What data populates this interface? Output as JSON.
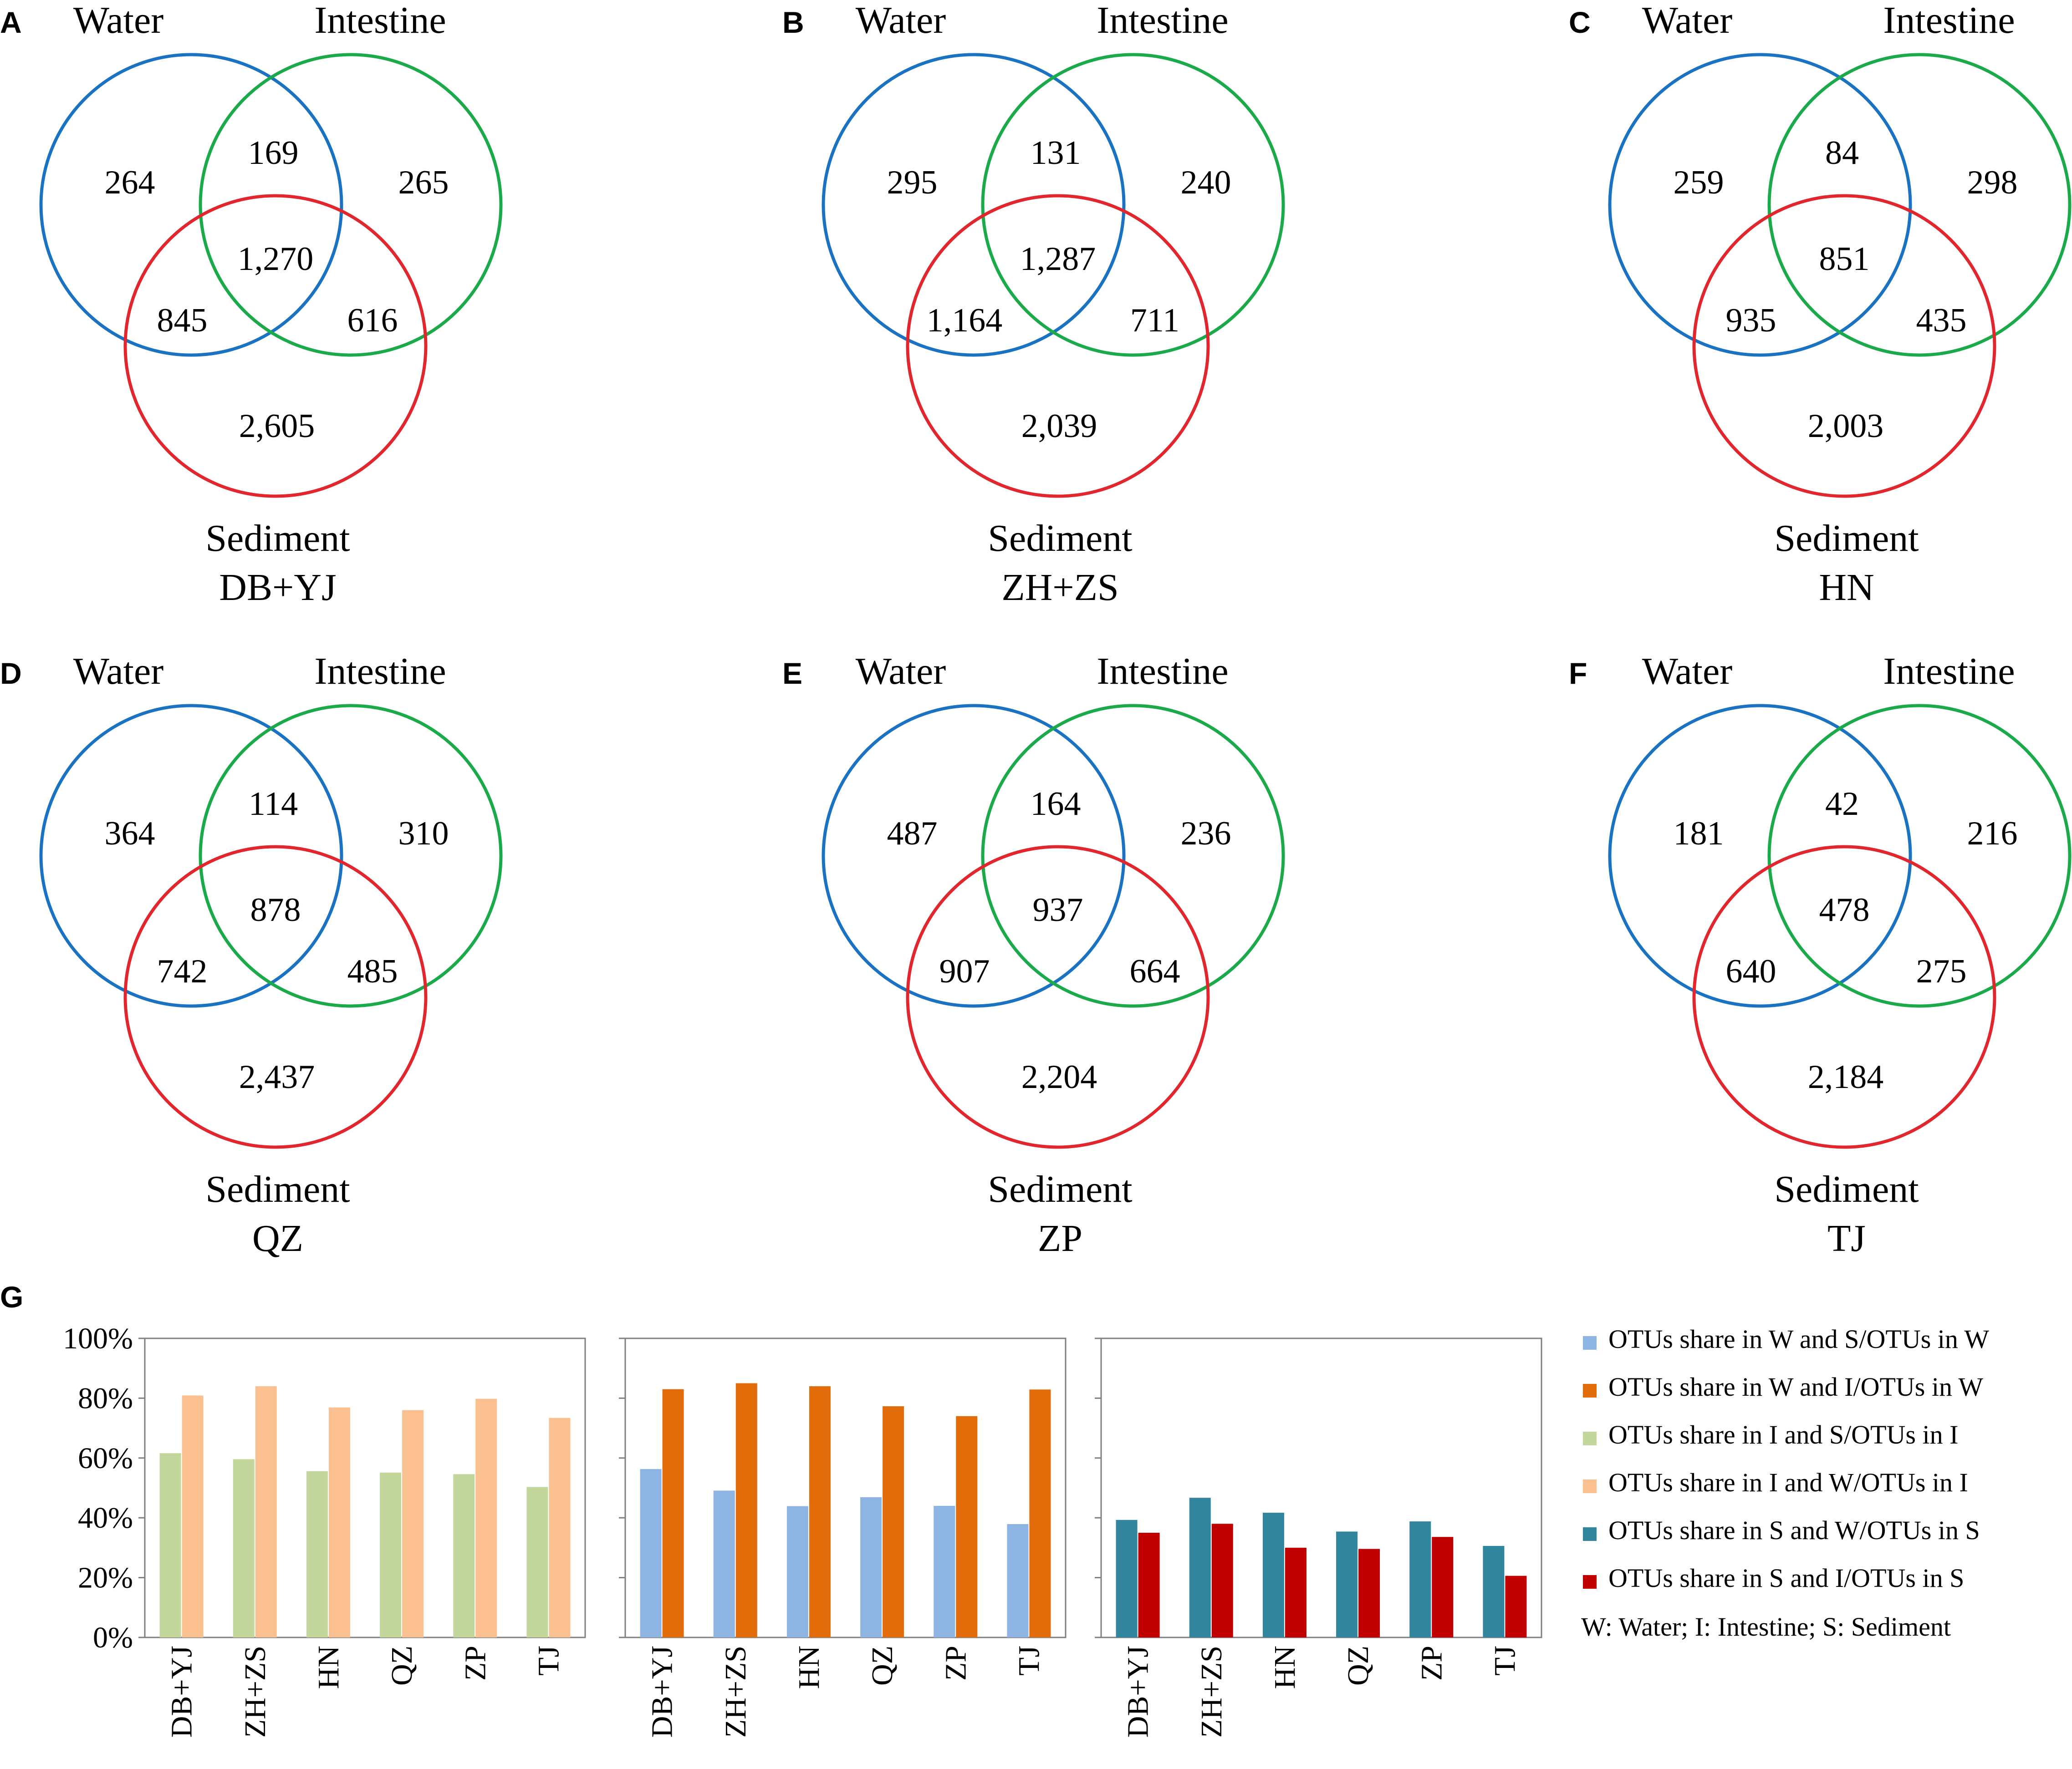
{
  "colors": {
    "water": "#1a72c2",
    "intestine": "#1aaa4a",
    "sediment": "#e2262d",
    "ws_w": "#8eb4e3",
    "wi_w": "#e36c0a",
    "is_i": "#c3d69b",
    "iw_i": "#fac090",
    "sw_s": "#31859c",
    "si_s": "#c00000"
  },
  "venn_labels": {
    "water": "Water",
    "intestine": "Intestine",
    "sediment": "Sediment"
  },
  "venns": [
    {
      "letter": "A",
      "site": "DB+YJ",
      "w": "264",
      "i": "265",
      "s": "2,605",
      "wi": "169",
      "ws": "845",
      "is": "616",
      "wis": "1,270"
    },
    {
      "letter": "B",
      "site": "ZH+ZS",
      "w": "295",
      "i": "240",
      "s": "2,039",
      "wi": "131",
      "ws": "1,164",
      "is": "711",
      "wis": "1,287"
    },
    {
      "letter": "C",
      "site": "HN",
      "w": "259",
      "i": "298",
      "s": "2,003",
      "wi": "84",
      "ws": "935",
      "is": "435",
      "wis": "851"
    },
    {
      "letter": "D",
      "site": "QZ",
      "w": "364",
      "i": "310",
      "s": "2,437",
      "wi": "114",
      "ws": "742",
      "is": "485",
      "wis": "878"
    },
    {
      "letter": "E",
      "site": "ZP",
      "w": "487",
      "i": "236",
      "s": "2,204",
      "wi": "164",
      "ws": "907",
      "is": "664",
      "wis": "937"
    },
    {
      "letter": "F",
      "site": "TJ",
      "w": "181",
      "i": "216",
      "s": "2,184",
      "wi": "42",
      "ws": "640",
      "is": "275",
      "wis": "478"
    }
  ],
  "chart_data": [
    {
      "type": "bar",
      "panel": "G",
      "categories": [
        "DB+YJ",
        "ZH+ZS",
        "HN",
        "QZ",
        "ZP",
        "TJ"
      ],
      "y_ticks": [
        "0%",
        "20%",
        "40%",
        "60%",
        "80%",
        "100%"
      ],
      "ylim": [
        0,
        100
      ],
      "series": [
        {
          "name": "OTUs share in I and S/OTUs in I",
          "key": "is_i",
          "values": [
            61.6,
            59.6,
            55.6,
            55.1,
            54.6,
            50.3
          ]
        },
        {
          "name": "OTUs share in I and W/OTUs in I",
          "key": "iw_i",
          "values": [
            80.9,
            84.0,
            76.9,
            76.0,
            79.8,
            73.4
          ]
        }
      ]
    },
    {
      "type": "bar",
      "panel": "G",
      "categories": [
        "DB+YJ",
        "ZH+ZS",
        "HN",
        "QZ",
        "ZP",
        "TJ"
      ],
      "y_ticks": [
        "0%",
        "20%",
        "40%",
        "60%",
        "80%",
        "100%"
      ],
      "ylim": [
        0,
        100
      ],
      "series": [
        {
          "name": "OTUs share in W and S/OTUs in W",
          "key": "ws_w",
          "values": [
            56.3,
            49.1,
            43.9,
            46.9,
            44.0,
            37.9
          ]
        },
        {
          "name": "OTUs share in W and I/OTUs in W",
          "key": "wi_w",
          "values": [
            83.0,
            85.0,
            84.0,
            77.3,
            74.0,
            82.9
          ]
        }
      ]
    },
    {
      "type": "bar",
      "panel": "G",
      "categories": [
        "DB+YJ",
        "ZH+ZS",
        "HN",
        "QZ",
        "ZP",
        "TJ"
      ],
      "y_ticks": [
        "0%",
        "20%",
        "40%",
        "60%",
        "80%",
        "100%"
      ],
      "ylim": [
        0,
        100
      ],
      "series": [
        {
          "name": "OTUs share in S and W/OTUs in S",
          "key": "sw_s",
          "values": [
            39.3,
            46.7,
            41.7,
            35.4,
            38.8,
            30.6
          ]
        },
        {
          "name": "OTUs share in S and I/OTUs in S",
          "key": "si_s",
          "values": [
            35.0,
            38.0,
            30.0,
            29.6,
            33.6,
            20.6
          ]
        }
      ]
    }
  ],
  "legend": {
    "items": [
      {
        "label": "OTUs share in W and S/OTUs in W",
        "key": "ws_w"
      },
      {
        "label": "OTUs share in W and I/OTUs in W",
        "key": "wi_w"
      },
      {
        "label": "OTUs share in I and S/OTUs in I",
        "key": "is_i"
      },
      {
        "label": "OTUs share in I and W/OTUs in I",
        "key": "iw_i"
      },
      {
        "label": "OTUs share in S and W/OTUs in S",
        "key": "sw_s"
      },
      {
        "label": "OTUs share in S and I/OTUs in S",
        "key": "si_s"
      }
    ],
    "note": "W: Water; I: Intestine; S: Sediment"
  },
  "panel_g_letter": "G"
}
